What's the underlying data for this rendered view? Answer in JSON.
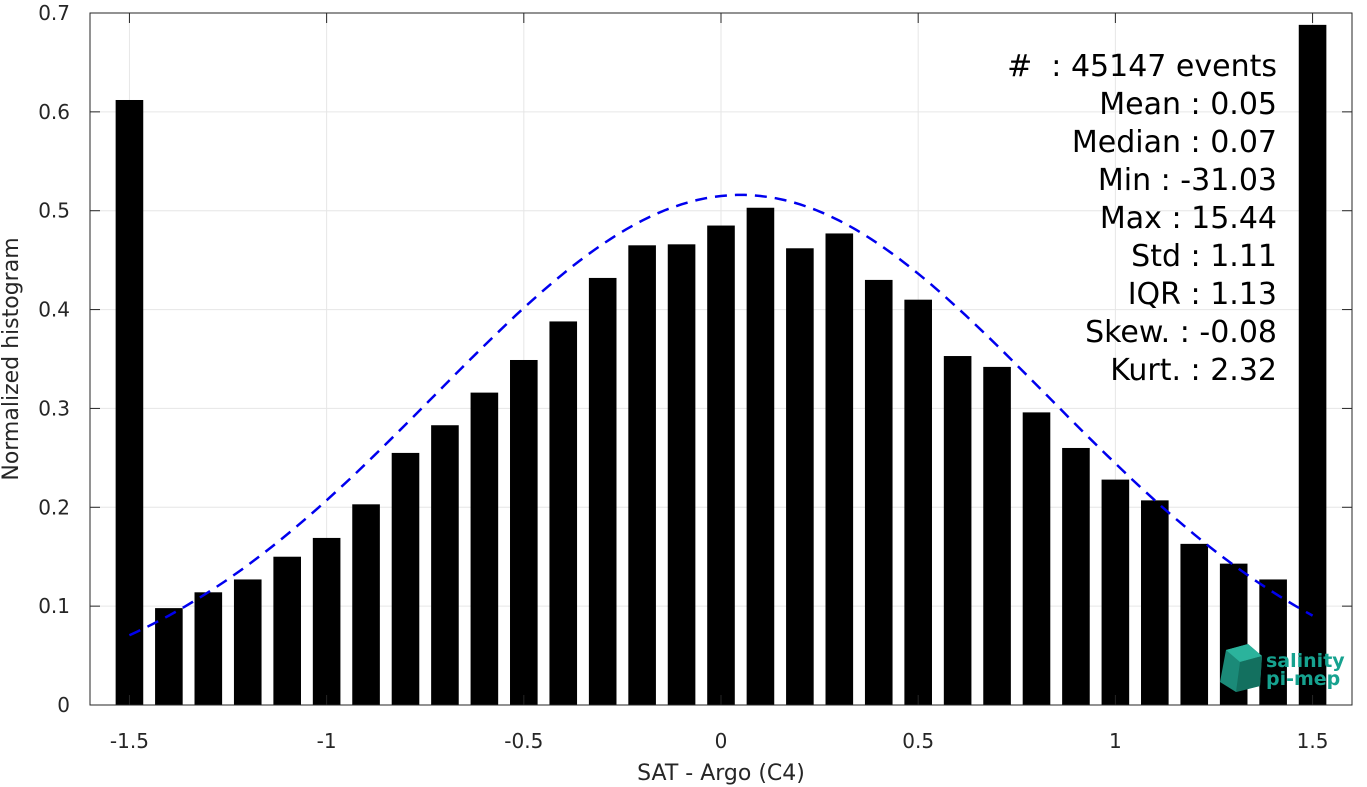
{
  "chart_data": {
    "type": "bar",
    "xlabel": "SAT - Argo (C4)",
    "ylabel": "Normalized histogram",
    "xlim": [
      -1.6,
      1.6
    ],
    "ylim": [
      0,
      0.7
    ],
    "xticks": [
      -1.5,
      -1,
      -0.5,
      0,
      0.5,
      1,
      1.5
    ],
    "xtick_labels": [
      "-1.5",
      "-1",
      "-0.5",
      "0",
      "0.5",
      "1",
      "1.5"
    ],
    "yticks": [
      0,
      0.1,
      0.2,
      0.3,
      0.4,
      0.5,
      0.6,
      0.7
    ],
    "ytick_labels": [
      "0",
      "0.1",
      "0.2",
      "0.3",
      "0.4",
      "0.5",
      "0.6",
      "0.7"
    ],
    "grid": true,
    "bar_color": "#000000",
    "bar_width": 0.07,
    "bars": {
      "x": [
        -1.5,
        -1.4,
        -1.3,
        -1.2,
        -1.1,
        -1.0,
        -0.9,
        -0.8,
        -0.7,
        -0.6,
        -0.5,
        -0.4,
        -0.3,
        -0.2,
        -0.1,
        0.0,
        0.1,
        0.2,
        0.3,
        0.4,
        0.5,
        0.6,
        0.7,
        0.8,
        0.9,
        1.0,
        1.1,
        1.2,
        1.3,
        1.4,
        1.5
      ],
      "values": [
        0.612,
        0.098,
        0.114,
        0.127,
        0.15,
        0.169,
        0.203,
        0.255,
        0.283,
        0.316,
        0.349,
        0.388,
        0.432,
        0.465,
        0.466,
        0.485,
        0.503,
        0.462,
        0.477,
        0.43,
        0.41,
        0.353,
        0.342,
        0.296,
        0.26,
        0.228,
        0.207,
        0.163,
        0.143,
        0.127,
        0.688
      ]
    },
    "fit_curve": {
      "style": "dashed",
      "color": "#0000ee",
      "mean": 0.05,
      "std": 0.777,
      "peak": 0.516,
      "x_range": [
        -1.5,
        1.5
      ]
    },
    "annotations": [
      "#  : 45147 events",
      "Mean : 0.05",
      "Median : 0.07",
      "Min : -31.03",
      "Max : 15.44",
      "Std : 1.11",
      "IQR : 1.13",
      "Skew. : -0.08",
      "Kurt. : 2.32"
    ]
  },
  "logo": {
    "line1": "salinity",
    "line2": "pi-mep",
    "color": "#16a28f"
  }
}
